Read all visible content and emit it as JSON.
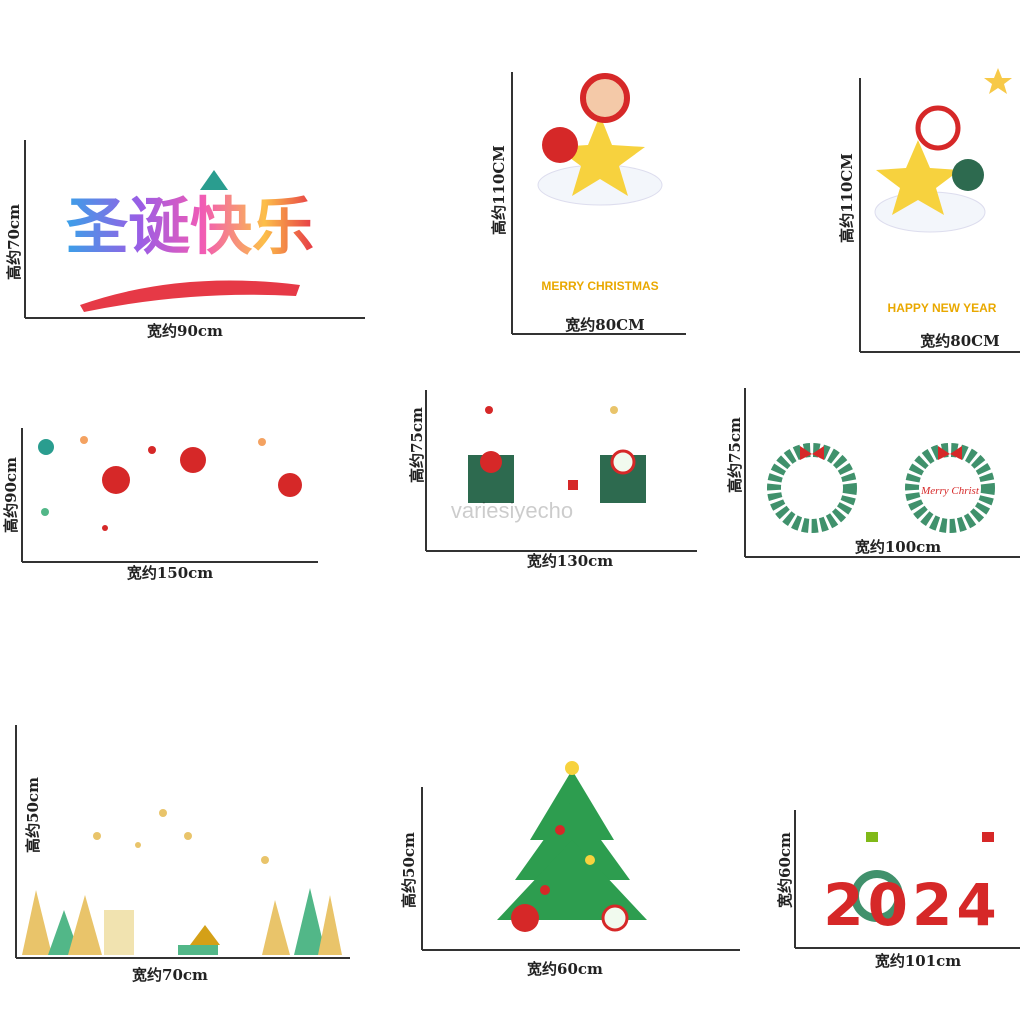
{
  "watermark": "variesiyecho",
  "panels": [
    {
      "height_label": "高约70cm",
      "width_label": "宽约90cm",
      "art": "圣诞快乐"
    },
    {
      "height_label": "高约110CM",
      "width_label": "宽约80CM",
      "art": "MERRY CHRISTMAS"
    },
    {
      "height_label": "高约110CM",
      "width_label": "宽约80CM",
      "art": "HAPPY NEW YEAR"
    },
    {
      "height_label": "高约90cm",
      "width_label": "宽约150cm"
    },
    {
      "height_label": "高约75cm",
      "width_label": "宽约130cm"
    },
    {
      "height_label": "高约75cm",
      "width_label": "宽约100cm",
      "art": "Merry Christ"
    },
    {
      "height_label": "高约50cm",
      "width_label": "宽约70cm"
    },
    {
      "height_label": "高约50cm",
      "width_label": "宽约60cm"
    },
    {
      "height_label": "宽约60cm",
      "width_label": "宽约101cm",
      "art": "2024"
    }
  ]
}
